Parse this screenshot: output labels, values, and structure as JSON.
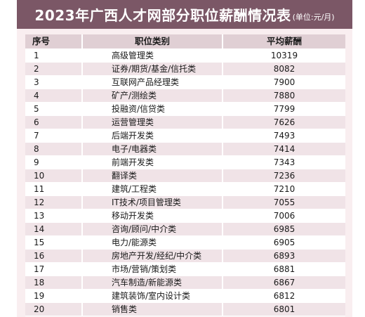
{
  "title": "2023年广西人才网部分职位薪酬情况表",
  "unit": "(单位:元/月)",
  "headers": {
    "index": "序号",
    "category": "职位类别",
    "salary": "平均薪酬"
  },
  "rows": [
    {
      "index": "1",
      "category": "高级管理类",
      "salary": "10319"
    },
    {
      "index": "2",
      "category": "证券/期货/基金/信托类",
      "salary": "8082"
    },
    {
      "index": "3",
      "category": "互联网产品经理类",
      "salary": "7900"
    },
    {
      "index": "4",
      "category": "矿产/测绘类",
      "salary": "7880"
    },
    {
      "index": "5",
      "category": "投融资/信贷类",
      "salary": "7799"
    },
    {
      "index": "6",
      "category": "运营管理类",
      "salary": "7626"
    },
    {
      "index": "7",
      "category": "后端开发类",
      "salary": "7493"
    },
    {
      "index": "8",
      "category": "电子/电器类",
      "salary": "7414"
    },
    {
      "index": "9",
      "category": "前端开发类",
      "salary": "7343"
    },
    {
      "index": "10",
      "category": "翻译类",
      "salary": "7236"
    },
    {
      "index": "11",
      "category": "建筑/工程类",
      "salary": "7210"
    },
    {
      "index": "12",
      "category": "IT技术/项目管理类",
      "salary": "7055"
    },
    {
      "index": "13",
      "category": "移动开发类",
      "salary": "7006"
    },
    {
      "index": "14",
      "category": "咨询/顾问/中介类",
      "salary": "6985"
    },
    {
      "index": "15",
      "category": "电力/能源类",
      "salary": "6905"
    },
    {
      "index": "16",
      "category": "房地产开发/经纪/中介类",
      "salary": "6893"
    },
    {
      "index": "17",
      "category": "市场/营销/策划类",
      "salary": "6881"
    },
    {
      "index": "18",
      "category": "汽车制造/新能源类",
      "salary": "6867"
    },
    {
      "index": "19",
      "category": "建筑装饰/室内设计类",
      "salary": "6812"
    },
    {
      "index": "20",
      "category": "销售类",
      "salary": "6801"
    }
  ],
  "colors": {
    "title_bg": "#7b5766",
    "frame_bg": "#f9eef0",
    "header_bg": "#e0cfd4",
    "row_alt_bg": "#f0e3e7"
  }
}
